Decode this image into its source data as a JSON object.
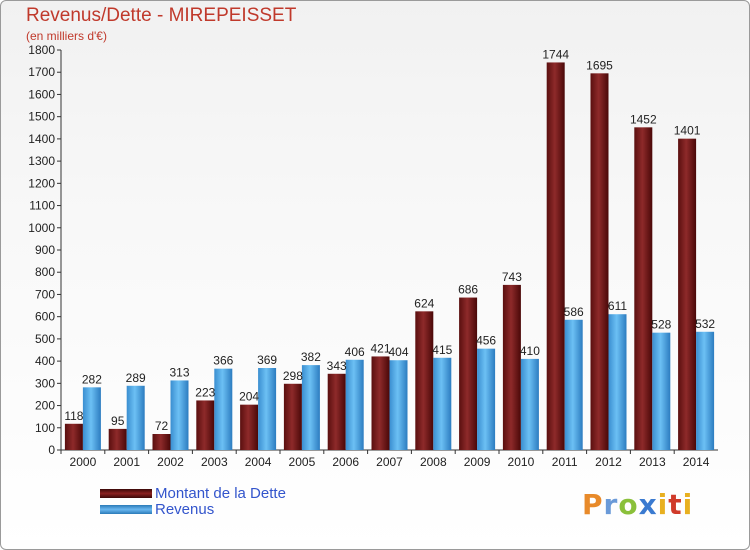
{
  "chart_data": {
    "type": "bar",
    "title": "Revenus/Dette - MIREPEISSET",
    "subtitle": "(en milliers d'€)",
    "categories": [
      "2000",
      "2001",
      "2002",
      "2003",
      "2004",
      "2005",
      "2006",
      "2007",
      "2008",
      "2009",
      "2010",
      "2011",
      "2012",
      "2013",
      "2014"
    ],
    "series": [
      {
        "name": "Montant de la Dette",
        "values": [
          118,
          95,
          72,
          223,
          204,
          298,
          343,
          421,
          624,
          686,
          743,
          1744,
          1695,
          1452,
          1401
        ],
        "color": "#7a1a1a"
      },
      {
        "name": "Revenus",
        "values": [
          282,
          289,
          313,
          366,
          369,
          382,
          406,
          404,
          415,
          456,
          410,
          586,
          611,
          528,
          532
        ],
        "color": "#4aa0e0"
      }
    ],
    "ylim": [
      0,
      1800
    ],
    "yticks": [
      0,
      100,
      200,
      300,
      400,
      500,
      600,
      700,
      800,
      900,
      1000,
      1100,
      1200,
      1300,
      1400,
      1500,
      1600,
      1700,
      1800
    ],
    "grid": false,
    "legend": "bottom-left"
  },
  "logo": {
    "text": "Proxiti"
  }
}
